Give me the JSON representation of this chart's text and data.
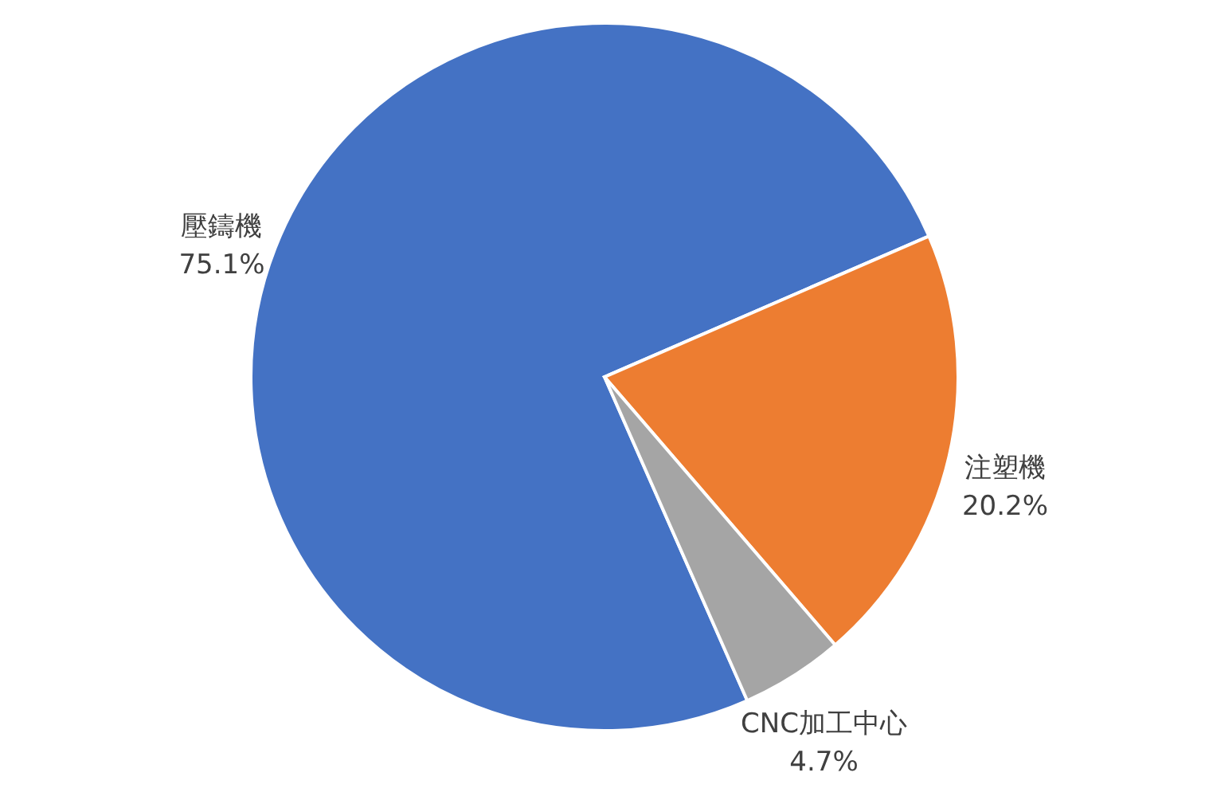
{
  "chart_data": {
    "type": "pie",
    "categories": [
      "壓鑄機",
      "注塑機",
      "CNC加工中心"
    ],
    "values": [
      75.1,
      20.2,
      4.7
    ],
    "colors": [
      "#4472c4",
      "#ed7d31",
      "#a5a5a5"
    ],
    "value_labels": [
      "75.1%",
      "20.2%",
      "4.7%"
    ],
    "legend": false
  }
}
